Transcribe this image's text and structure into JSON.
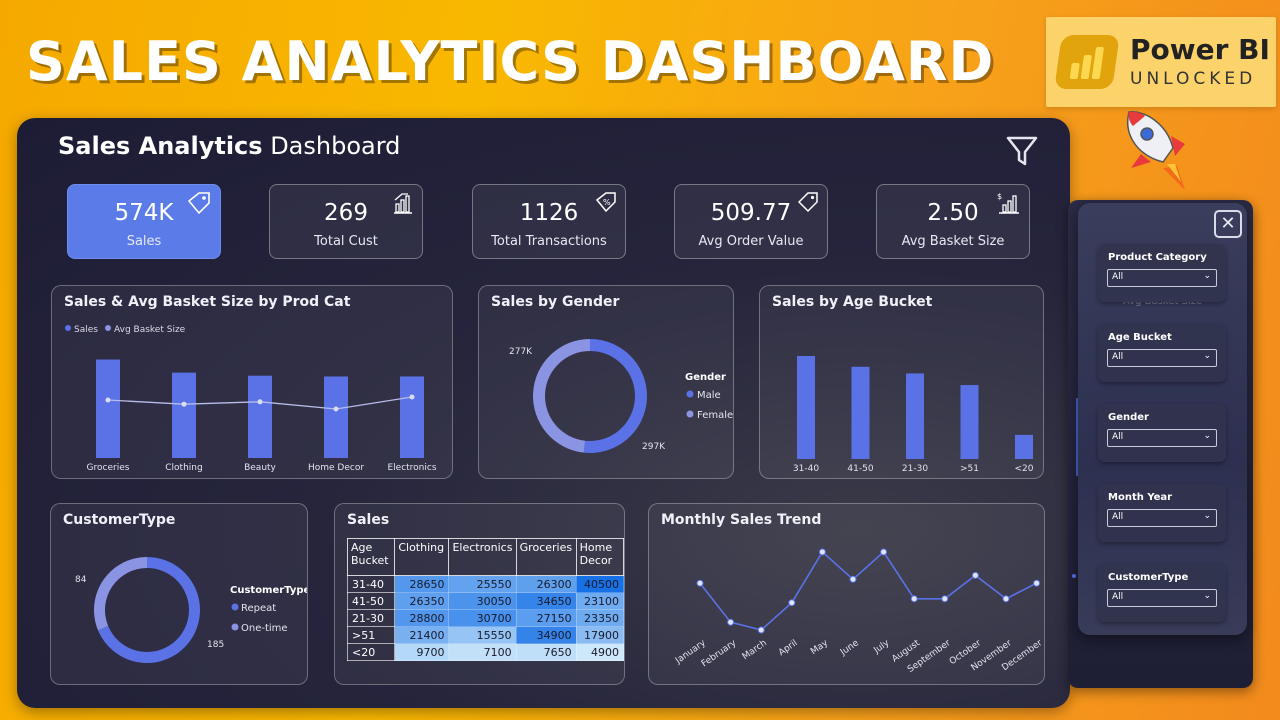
{
  "banner": {
    "title": "SALES ANALYTICS DASHBOARD",
    "logo_line1": "Power BI",
    "logo_line2": "UNLOCKED"
  },
  "dashboard": {
    "title_bold": "Sales Analytics",
    "title_rest": " Dashboard"
  },
  "kpis": [
    {
      "value": "574K",
      "label": "Sales",
      "icon": "price-tag-icon"
    },
    {
      "value": "269",
      "label": "Total Cust",
      "icon": "bar-chart-icon"
    },
    {
      "value": "1126",
      "label": "Total Transactions",
      "icon": "percent-tag-icon"
    },
    {
      "value": "509.77",
      "label": "Avg Order Value",
      "icon": "tag-icon"
    },
    {
      "value": "2.50",
      "label": "Avg Basket Size",
      "icon": "dollar-chart-icon"
    }
  ],
  "cards": {
    "prodcat": {
      "title": "Sales & Avg Basket Size by Prod Cat",
      "legend_sales": "Sales",
      "legend_basket": "Avg Basket Size"
    },
    "gender": {
      "title": "Sales by Gender",
      "legend_title": "Gender",
      "legend_male": "Male",
      "legend_female": "Female",
      "label_female": "277K",
      "label_male": "297K"
    },
    "age": {
      "title": "Sales by Age Bucket"
    },
    "customer": {
      "title": "CustomerType",
      "legend_title": "CustomerType",
      "legend_repeat": "Repeat",
      "legend_onetime": "One-time",
      "label_onetime": "84",
      "label_repeat": "185"
    },
    "sales_table": {
      "title": "Sales"
    },
    "trend": {
      "title": "Monthly Sales Trend"
    }
  },
  "chart_data": [
    {
      "type": "bar",
      "title": "Sales & Avg Basket Size by Prod Cat",
      "categories": [
        "Groceries",
        "Clothing",
        "Beauty",
        "Home Decor",
        "Electronics"
      ],
      "series": [
        {
          "name": "Sales",
          "values": [
            128000,
            111000,
            107000,
            106000,
            106000
          ]
        },
        {
          "name": "Avg Basket Size",
          "values": [
            2.55,
            2.48,
            2.52,
            2.4,
            2.6
          ]
        }
      ]
    },
    {
      "type": "pie",
      "title": "Sales by Gender",
      "categories": [
        "Male",
        "Female"
      ],
      "values": [
        297,
        277
      ],
      "colors": [
        "#5a72e6",
        "#8b93e3"
      ]
    },
    {
      "type": "bar",
      "title": "Sales by Age Bucket",
      "categories": [
        "31-40",
        "41-50",
        "21-30",
        ">51",
        "<20"
      ],
      "values": [
        124000,
        111000,
        103000,
        89000,
        29000
      ]
    },
    {
      "type": "pie",
      "title": "CustomerType",
      "categories": [
        "Repeat",
        "One-time"
      ],
      "values": [
        185,
        84
      ],
      "colors": [
        "#5a72e6",
        "#8b93e3"
      ]
    },
    {
      "type": "table",
      "title": "Sales",
      "columns": [
        "Age Bucket",
        "Clothing",
        "Electronics",
        "Groceries",
        "Home Decor"
      ],
      "rows": [
        [
          "31-40",
          28650,
          25550,
          26300,
          40500
        ],
        [
          "41-50",
          26350,
          30050,
          34650,
          23100
        ],
        [
          "21-30",
          28800,
          30700,
          27150,
          23350
        ],
        [
          ">51",
          21400,
          15550,
          34900,
          17900
        ],
        [
          "<20",
          9700,
          7100,
          7650,
          4900
        ]
      ]
    },
    {
      "type": "line",
      "title": "Monthly Sales Trend",
      "categories": [
        "January",
        "February",
        "March",
        "April",
        "May",
        "June",
        "July",
        "August",
        "September",
        "October",
        "November",
        "December"
      ],
      "values": [
        50000,
        40000,
        38000,
        45000,
        58000,
        51000,
        58000,
        46000,
        46000,
        52000,
        46000,
        50000
      ]
    }
  ],
  "slicer_panel": {
    "slicers": [
      {
        "label": "Product Category",
        "value": "All"
      },
      {
        "label": "Age Bucket",
        "value": "All"
      },
      {
        "label": "Gender",
        "value": "All"
      },
      {
        "label": "Month Year",
        "value": "All"
      },
      {
        "label": "CustomerType",
        "value": "All"
      }
    ],
    "ghost_label": "Avg Basket Size"
  },
  "colors": {
    "accent": "#5a72e6",
    "accent_light": "#8b93e3",
    "dash_bg": "#1d1c35",
    "banner": "#f7a800"
  }
}
